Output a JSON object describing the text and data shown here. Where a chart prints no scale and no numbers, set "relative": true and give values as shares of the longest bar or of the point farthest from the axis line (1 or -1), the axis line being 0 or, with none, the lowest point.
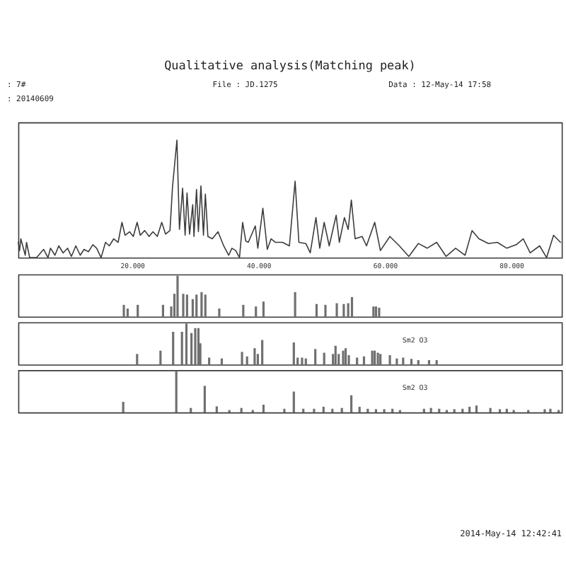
{
  "chart_data": [
    {
      "type": "line",
      "title": "Qualitative analysis(Matching peak)",
      "annotations": [
        ": 7#",
        ": 20140609",
        "File : JD.1275",
        "Data : 12-May-14 17:58"
      ],
      "relative": true,
      "xlim": [
        2,
        88
      ],
      "xticks": [
        {
          "value": 20,
          "label": "20.000"
        },
        {
          "value": 40,
          "label": "40.000"
        },
        {
          "value": 60,
          "label": "60.000"
        },
        {
          "value": 80,
          "label": "80.000"
        }
      ],
      "x": [
        2.0,
        2.2,
        2.4,
        3.1,
        3.3,
        3.8,
        4.9,
        6.0,
        6.7,
        7.1,
        7.8,
        8.4,
        9.1,
        9.8,
        10.4,
        11.1,
        11.8,
        12.4,
        13.1,
        13.8,
        14.4,
        15.1,
        15.8,
        16.4,
        17.1,
        17.8,
        18.4,
        18.9,
        19.6,
        20.2,
        20.8,
        21.3,
        22.0,
        22.7,
        23.3,
        24.0,
        24.7,
        25.3,
        26.0,
        26.4,
        27.1,
        27.5,
        28.0,
        28.4,
        28.7,
        29.1,
        29.6,
        29.8,
        30.2,
        30.5,
        30.9,
        31.3,
        31.6,
        32.0,
        32.7,
        33.6,
        34.5,
        35.3,
        35.8,
        36.4,
        37.0,
        37.5,
        38.0,
        38.4,
        39.5,
        39.9,
        40.7,
        41.4,
        42.0,
        42.7,
        43.8,
        44.9,
        45.8,
        46.4,
        47.5,
        48.2,
        49.1,
        49.7,
        50.4,
        51.2,
        52.3,
        52.8,
        53.6,
        54.2,
        54.7,
        55.3,
        56.4,
        57.1,
        58.4,
        59.3,
        60.8,
        62.3,
        63.8,
        65.3,
        66.7,
        68.2,
        69.7,
        71.2,
        72.7,
        73.8,
        74.9,
        76.4,
        77.8,
        79.3,
        80.8,
        81.9,
        83.0,
        84.5,
        85.6,
        86.7,
        87.8
      ],
      "series": [
        {
          "color": "#3c3c3c",
          "values": [
            0.13,
            0.06,
            0.16,
            0.02,
            0.13,
            0.0,
            0.0,
            0.07,
            0.0,
            0.08,
            0.02,
            0.1,
            0.04,
            0.08,
            0.01,
            0.1,
            0.02,
            0.07,
            0.05,
            0.11,
            0.08,
            0.0,
            0.13,
            0.1,
            0.16,
            0.13,
            0.3,
            0.19,
            0.22,
            0.18,
            0.3,
            0.19,
            0.23,
            0.18,
            0.22,
            0.18,
            0.3,
            0.2,
            0.23,
            0.6,
            1.0,
            0.24,
            0.59,
            0.19,
            0.55,
            0.2,
            0.45,
            0.18,
            0.58,
            0.22,
            0.61,
            0.19,
            0.54,
            0.18,
            0.16,
            0.22,
            0.1,
            0.02,
            0.08,
            0.06,
            0.0,
            0.3,
            0.14,
            0.13,
            0.27,
            0.08,
            0.42,
            0.07,
            0.16,
            0.13,
            0.13,
            0.1,
            0.65,
            0.13,
            0.12,
            0.04,
            0.34,
            0.08,
            0.3,
            0.1,
            0.36,
            0.13,
            0.34,
            0.24,
            0.49,
            0.16,
            0.18,
            0.1,
            0.3,
            0.06,
            0.18,
            0.1,
            0.01,
            0.12,
            0.08,
            0.13,
            0.01,
            0.08,
            0.02,
            0.23,
            0.16,
            0.12,
            0.13,
            0.08,
            0.11,
            0.16,
            0.04,
            0.1,
            0.0,
            0.19,
            0.13
          ]
        }
      ]
    },
    {
      "type": "bar",
      "relative": true,
      "xlim": [
        2,
        88
      ],
      "tick_labels": false,
      "x": [
        18.7,
        19.3,
        20.9,
        24.9,
        26.2,
        26.7,
        27.2,
        28.1,
        28.7,
        29.6,
        30.2,
        31.0,
        31.6,
        33.8,
        37.6,
        39.6,
        40.8,
        45.8,
        49.2,
        50.6,
        52.4,
        53.5,
        54.2,
        54.8,
        58.2,
        58.6,
        59.1
      ],
      "series": [
        {
          "color": "#707070",
          "values": [
            0.29,
            0.2,
            0.29,
            0.29,
            0.25,
            0.56,
            1.0,
            0.56,
            0.54,
            0.43,
            0.54,
            0.6,
            0.54,
            0.2,
            0.29,
            0.25,
            0.37,
            0.6,
            0.31,
            0.29,
            0.33,
            0.31,
            0.33,
            0.48,
            0.25,
            0.25,
            0.22
          ]
        }
      ]
    },
    {
      "type": "bar",
      "relative": true,
      "xlim": [
        2,
        88
      ],
      "tick_labels": false,
      "x": [
        20.8,
        24.5,
        26.5,
        27.9,
        28.6,
        29.4,
        30.0,
        30.5,
        30.8,
        32.2,
        34.2,
        37.4,
        38.2,
        39.4,
        39.9,
        40.6,
        45.6,
        46.2,
        46.9,
        47.5,
        49.0,
        50.4,
        51.8,
        52.2,
        52.7,
        53.4,
        53.8,
        54.3,
        55.6,
        56.7,
        58.0,
        58.4,
        58.9,
        59.3,
        60.8,
        61.9,
        62.9,
        64.2,
        65.3,
        67.0,
        68.2
      ],
      "series": [
        {
          "name": "Sm2 O3",
          "color": "#707070",
          "values": [
            0.26,
            0.34,
            0.8,
            0.8,
            1.0,
            0.77,
            0.89,
            0.89,
            0.52,
            0.17,
            0.15,
            0.31,
            0.2,
            0.4,
            0.26,
            0.6,
            0.54,
            0.17,
            0.17,
            0.15,
            0.38,
            0.29,
            0.26,
            0.46,
            0.26,
            0.34,
            0.4,
            0.23,
            0.17,
            0.2,
            0.34,
            0.34,
            0.29,
            0.26,
            0.23,
            0.15,
            0.17,
            0.14,
            0.11,
            0.11,
            0.11
          ]
        }
      ]
    },
    {
      "type": "bar",
      "relative": true,
      "xlim": [
        2,
        88
      ],
      "tick_labels": false,
      "annotations": [
        "2014-May-14 12:42:41"
      ],
      "x": [
        18.6,
        27.0,
        29.3,
        31.5,
        33.4,
        35.4,
        37.3,
        39.1,
        40.8,
        44.1,
        45.6,
        47.1,
        48.8,
        50.3,
        51.7,
        53.2,
        54.7,
        56.0,
        57.3,
        58.6,
        59.9,
        61.2,
        62.4,
        66.2,
        67.3,
        68.6,
        69.8,
        71.0,
        72.3,
        73.4,
        74.5,
        76.7,
        78.2,
        79.3,
        80.4,
        82.7,
        85.3,
        86.2,
        87.5
      ],
      "series": [
        {
          "name": "Sm2 O3",
          "color": "#707070",
          "values": [
            0.26,
            1.0,
            0.11,
            0.65,
            0.15,
            0.06,
            0.11,
            0.06,
            0.19,
            0.09,
            0.51,
            0.09,
            0.09,
            0.14,
            0.09,
            0.11,
            0.42,
            0.14,
            0.09,
            0.08,
            0.08,
            0.09,
            0.06,
            0.09,
            0.11,
            0.09,
            0.06,
            0.08,
            0.09,
            0.14,
            0.17,
            0.11,
            0.08,
            0.09,
            0.06,
            0.06,
            0.08,
            0.09,
            0.06
          ]
        }
      ]
    }
  ]
}
